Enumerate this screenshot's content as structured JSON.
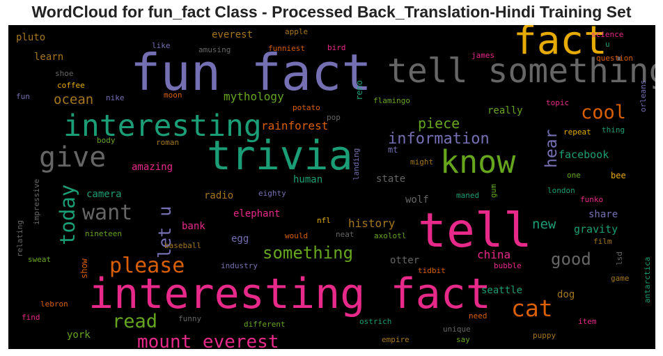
{
  "title": "WordCloud for fun_fact Class - Processed Back_Translation-Hindi Training Set",
  "chart_data": {
    "type": "wordcloud",
    "title": "WordCloud for fun_fact Class - Processed Back_Translation-Hindi Training Set",
    "background": "#000000",
    "colormap": "Dark2",
    "palette": {
      "green": "#1b9e77",
      "orange": "#d95f02",
      "purple": "#7570b3",
      "pink": "#e7298a",
      "lime": "#66a61e",
      "yellow": "#e6ab02",
      "brown": "#a6761d",
      "gray": "#666666"
    },
    "words": [
      {
        "text": "fun fact",
        "size": 1.0,
        "color": "purple"
      },
      {
        "text": "interesting fact",
        "size": 0.84,
        "color": "pink"
      },
      {
        "text": "tell",
        "size": 0.94,
        "color": "pink"
      },
      {
        "text": "trivia",
        "size": 0.8,
        "color": "green"
      },
      {
        "text": "fact",
        "size": 0.78,
        "color": "yellow"
      },
      {
        "text": "tell something",
        "size": 0.66,
        "color": "gray"
      },
      {
        "text": "interesting",
        "size": 0.6,
        "color": "green"
      },
      {
        "text": "know",
        "size": 0.62,
        "color": "lime"
      },
      {
        "text": "give",
        "size": 0.55,
        "color": "gray"
      },
      {
        "text": "please",
        "size": 0.42,
        "color": "orange"
      },
      {
        "text": "cat",
        "size": 0.46,
        "color": "orange"
      },
      {
        "text": "want",
        "size": 0.42,
        "color": "gray"
      },
      {
        "text": "read",
        "size": 0.38,
        "color": "lime"
      },
      {
        "text": "today",
        "size": 0.4,
        "color": "green"
      },
      {
        "text": "let u",
        "size": 0.35,
        "color": "purple"
      },
      {
        "text": "mount everest",
        "size": 0.36,
        "color": "pink"
      },
      {
        "text": "cool",
        "size": 0.38,
        "color": "orange"
      },
      {
        "text": "something",
        "size": 0.33,
        "color": "lime"
      },
      {
        "text": "good",
        "size": 0.34,
        "color": "gray"
      },
      {
        "text": "hear",
        "size": 0.32,
        "color": "purple"
      },
      {
        "text": "information",
        "size": 0.3,
        "color": "purple"
      },
      {
        "text": "piece",
        "size": 0.28,
        "color": "lime"
      },
      {
        "text": "new",
        "size": 0.27,
        "color": "green"
      },
      {
        "text": "ocean",
        "size": 0.26,
        "color": "brown"
      },
      {
        "text": "china",
        "size": 0.22,
        "color": "pink"
      },
      {
        "text": "history",
        "size": 0.22,
        "color": "brown"
      },
      {
        "text": "mythology",
        "size": 0.22,
        "color": "lime"
      },
      {
        "text": "rainforest",
        "size": 0.22,
        "color": "orange"
      },
      {
        "text": "facebook",
        "size": 0.21,
        "color": "green"
      },
      {
        "text": "gravity",
        "size": 0.21,
        "color": "green"
      },
      {
        "text": "everest",
        "size": 0.2,
        "color": "brown"
      },
      {
        "text": "learn",
        "size": 0.2,
        "color": "brown"
      },
      {
        "text": "pluto",
        "size": 0.2,
        "color": "brown"
      },
      {
        "text": "camera",
        "size": 0.19,
        "color": "green"
      },
      {
        "text": "amazing",
        "size": 0.19,
        "color": "pink"
      },
      {
        "text": "radio",
        "size": 0.19,
        "color": "brown"
      },
      {
        "text": "human",
        "size": 0.19,
        "color": "green"
      },
      {
        "text": "state",
        "size": 0.19,
        "color": "gray"
      },
      {
        "text": "elephant",
        "size": 0.19,
        "color": "pink"
      },
      {
        "text": "bank",
        "size": 0.19,
        "color": "pink"
      },
      {
        "text": "egg",
        "size": 0.19,
        "color": "purple"
      },
      {
        "text": "wolf",
        "size": 0.19,
        "color": "gray"
      },
      {
        "text": "otter",
        "size": 0.19,
        "color": "gray"
      },
      {
        "text": "really",
        "size": 0.19,
        "color": "lime"
      },
      {
        "text": "share",
        "size": 0.19,
        "color": "purple"
      },
      {
        "text": "seattle",
        "size": 0.19,
        "color": "green"
      },
      {
        "text": "dog",
        "size": 0.19,
        "color": "brown"
      },
      {
        "text": "york",
        "size": 0.19,
        "color": "lime"
      },
      {
        "text": "show",
        "size": 0.17,
        "color": "orange"
      },
      {
        "text": "mt",
        "size": 0.17,
        "color": "purple"
      },
      {
        "text": "bee",
        "size": 0.17,
        "color": "yellow"
      },
      {
        "text": "reno",
        "size": 0.17,
        "color": "green"
      },
      {
        "text": "shoe",
        "size": 0.13,
        "color": "gray"
      },
      {
        "text": "coffee",
        "size": 0.13,
        "color": "yellow"
      },
      {
        "text": "fun",
        "size": 0.13,
        "color": "purple"
      },
      {
        "text": "nike",
        "size": 0.13,
        "color": "purple"
      },
      {
        "text": "moon",
        "size": 0.13,
        "color": "orange"
      },
      {
        "text": "like",
        "size": 0.13,
        "color": "purple"
      },
      {
        "text": "amusing",
        "size": 0.13,
        "color": "gray"
      },
      {
        "text": "funniest",
        "size": 0.13,
        "color": "orange"
      },
      {
        "text": "bird",
        "size": 0.13,
        "color": "pink"
      },
      {
        "text": "apple",
        "size": 0.13,
        "color": "brown"
      },
      {
        "text": "james",
        "size": 0.13,
        "color": "pink"
      },
      {
        "text": "science",
        "size": 0.13,
        "color": "pink"
      },
      {
        "text": "u",
        "size": 0.13,
        "color": "green"
      },
      {
        "text": "question",
        "size": 0.13,
        "color": "orange"
      },
      {
        "text": "orleans",
        "size": 0.13,
        "color": "purple"
      },
      {
        "text": "flamingo",
        "size": 0.13,
        "color": "lime"
      },
      {
        "text": "topic",
        "size": 0.13,
        "color": "pink"
      },
      {
        "text": "potato",
        "size": 0.13,
        "color": "orange"
      },
      {
        "text": "pop",
        "size": 0.13,
        "color": "gray"
      },
      {
        "text": "body",
        "size": 0.13,
        "color": "lime"
      },
      {
        "text": "roman",
        "size": 0.13,
        "color": "brown"
      },
      {
        "text": "landing",
        "size": 0.13,
        "color": "purple"
      },
      {
        "text": "might",
        "size": 0.13,
        "color": "brown"
      },
      {
        "text": "repeat",
        "size": 0.13,
        "color": "yellow"
      },
      {
        "text": "thing",
        "size": 0.13,
        "color": "green"
      },
      {
        "text": "one",
        "size": 0.13,
        "color": "lime"
      },
      {
        "text": "impressive",
        "size": 0.13,
        "color": "gray"
      },
      {
        "text": "eighty",
        "size": 0.13,
        "color": "purple"
      },
      {
        "text": "maned",
        "size": 0.13,
        "color": "green"
      },
      {
        "text": "gum",
        "size": 0.13,
        "color": "lime"
      },
      {
        "text": "london",
        "size": 0.13,
        "color": "green"
      },
      {
        "text": "funko",
        "size": 0.13,
        "color": "pink"
      },
      {
        "text": "relating",
        "size": 0.13,
        "color": "gray"
      },
      {
        "text": "nineteen",
        "size": 0.13,
        "color": "lime"
      },
      {
        "text": "nfl",
        "size": 0.13,
        "color": "yellow"
      },
      {
        "text": "neat",
        "size": 0.13,
        "color": "gray"
      },
      {
        "text": "axolotl",
        "size": 0.13,
        "color": "lime"
      },
      {
        "text": "would",
        "size": 0.13,
        "color": "orange"
      },
      {
        "text": "baseball",
        "size": 0.13,
        "color": "brown"
      },
      {
        "text": "film",
        "size": 0.13,
        "color": "brown"
      },
      {
        "text": "sweat",
        "size": 0.13,
        "color": "lime"
      },
      {
        "text": "industry",
        "size": 0.13,
        "color": "purple"
      },
      {
        "text": "tidbit",
        "size": 0.13,
        "color": "orange"
      },
      {
        "text": "bubble",
        "size": 0.13,
        "color": "pink"
      },
      {
        "text": "lsd",
        "size": 0.13,
        "color": "gray"
      },
      {
        "text": "antarctica",
        "size": 0.13,
        "color": "green"
      },
      {
        "text": "game",
        "size": 0.13,
        "color": "brown"
      },
      {
        "text": "lebron",
        "size": 0.13,
        "color": "orange"
      },
      {
        "text": "find",
        "size": 0.13,
        "color": "pink"
      },
      {
        "text": "funny",
        "size": 0.13,
        "color": "gray"
      },
      {
        "text": "different",
        "size": 0.13,
        "color": "lime"
      },
      {
        "text": "ostrich",
        "size": 0.13,
        "color": "green"
      },
      {
        "text": "unique",
        "size": 0.13,
        "color": "gray"
      },
      {
        "text": "need",
        "size": 0.13,
        "color": "orange"
      },
      {
        "text": "say",
        "size": 0.13,
        "color": "lime"
      },
      {
        "text": "empire",
        "size": 0.13,
        "color": "brown"
      },
      {
        "text": "puppy",
        "size": 0.13,
        "color": "brown"
      },
      {
        "text": "item",
        "size": 0.13,
        "color": "pink"
      }
    ]
  }
}
